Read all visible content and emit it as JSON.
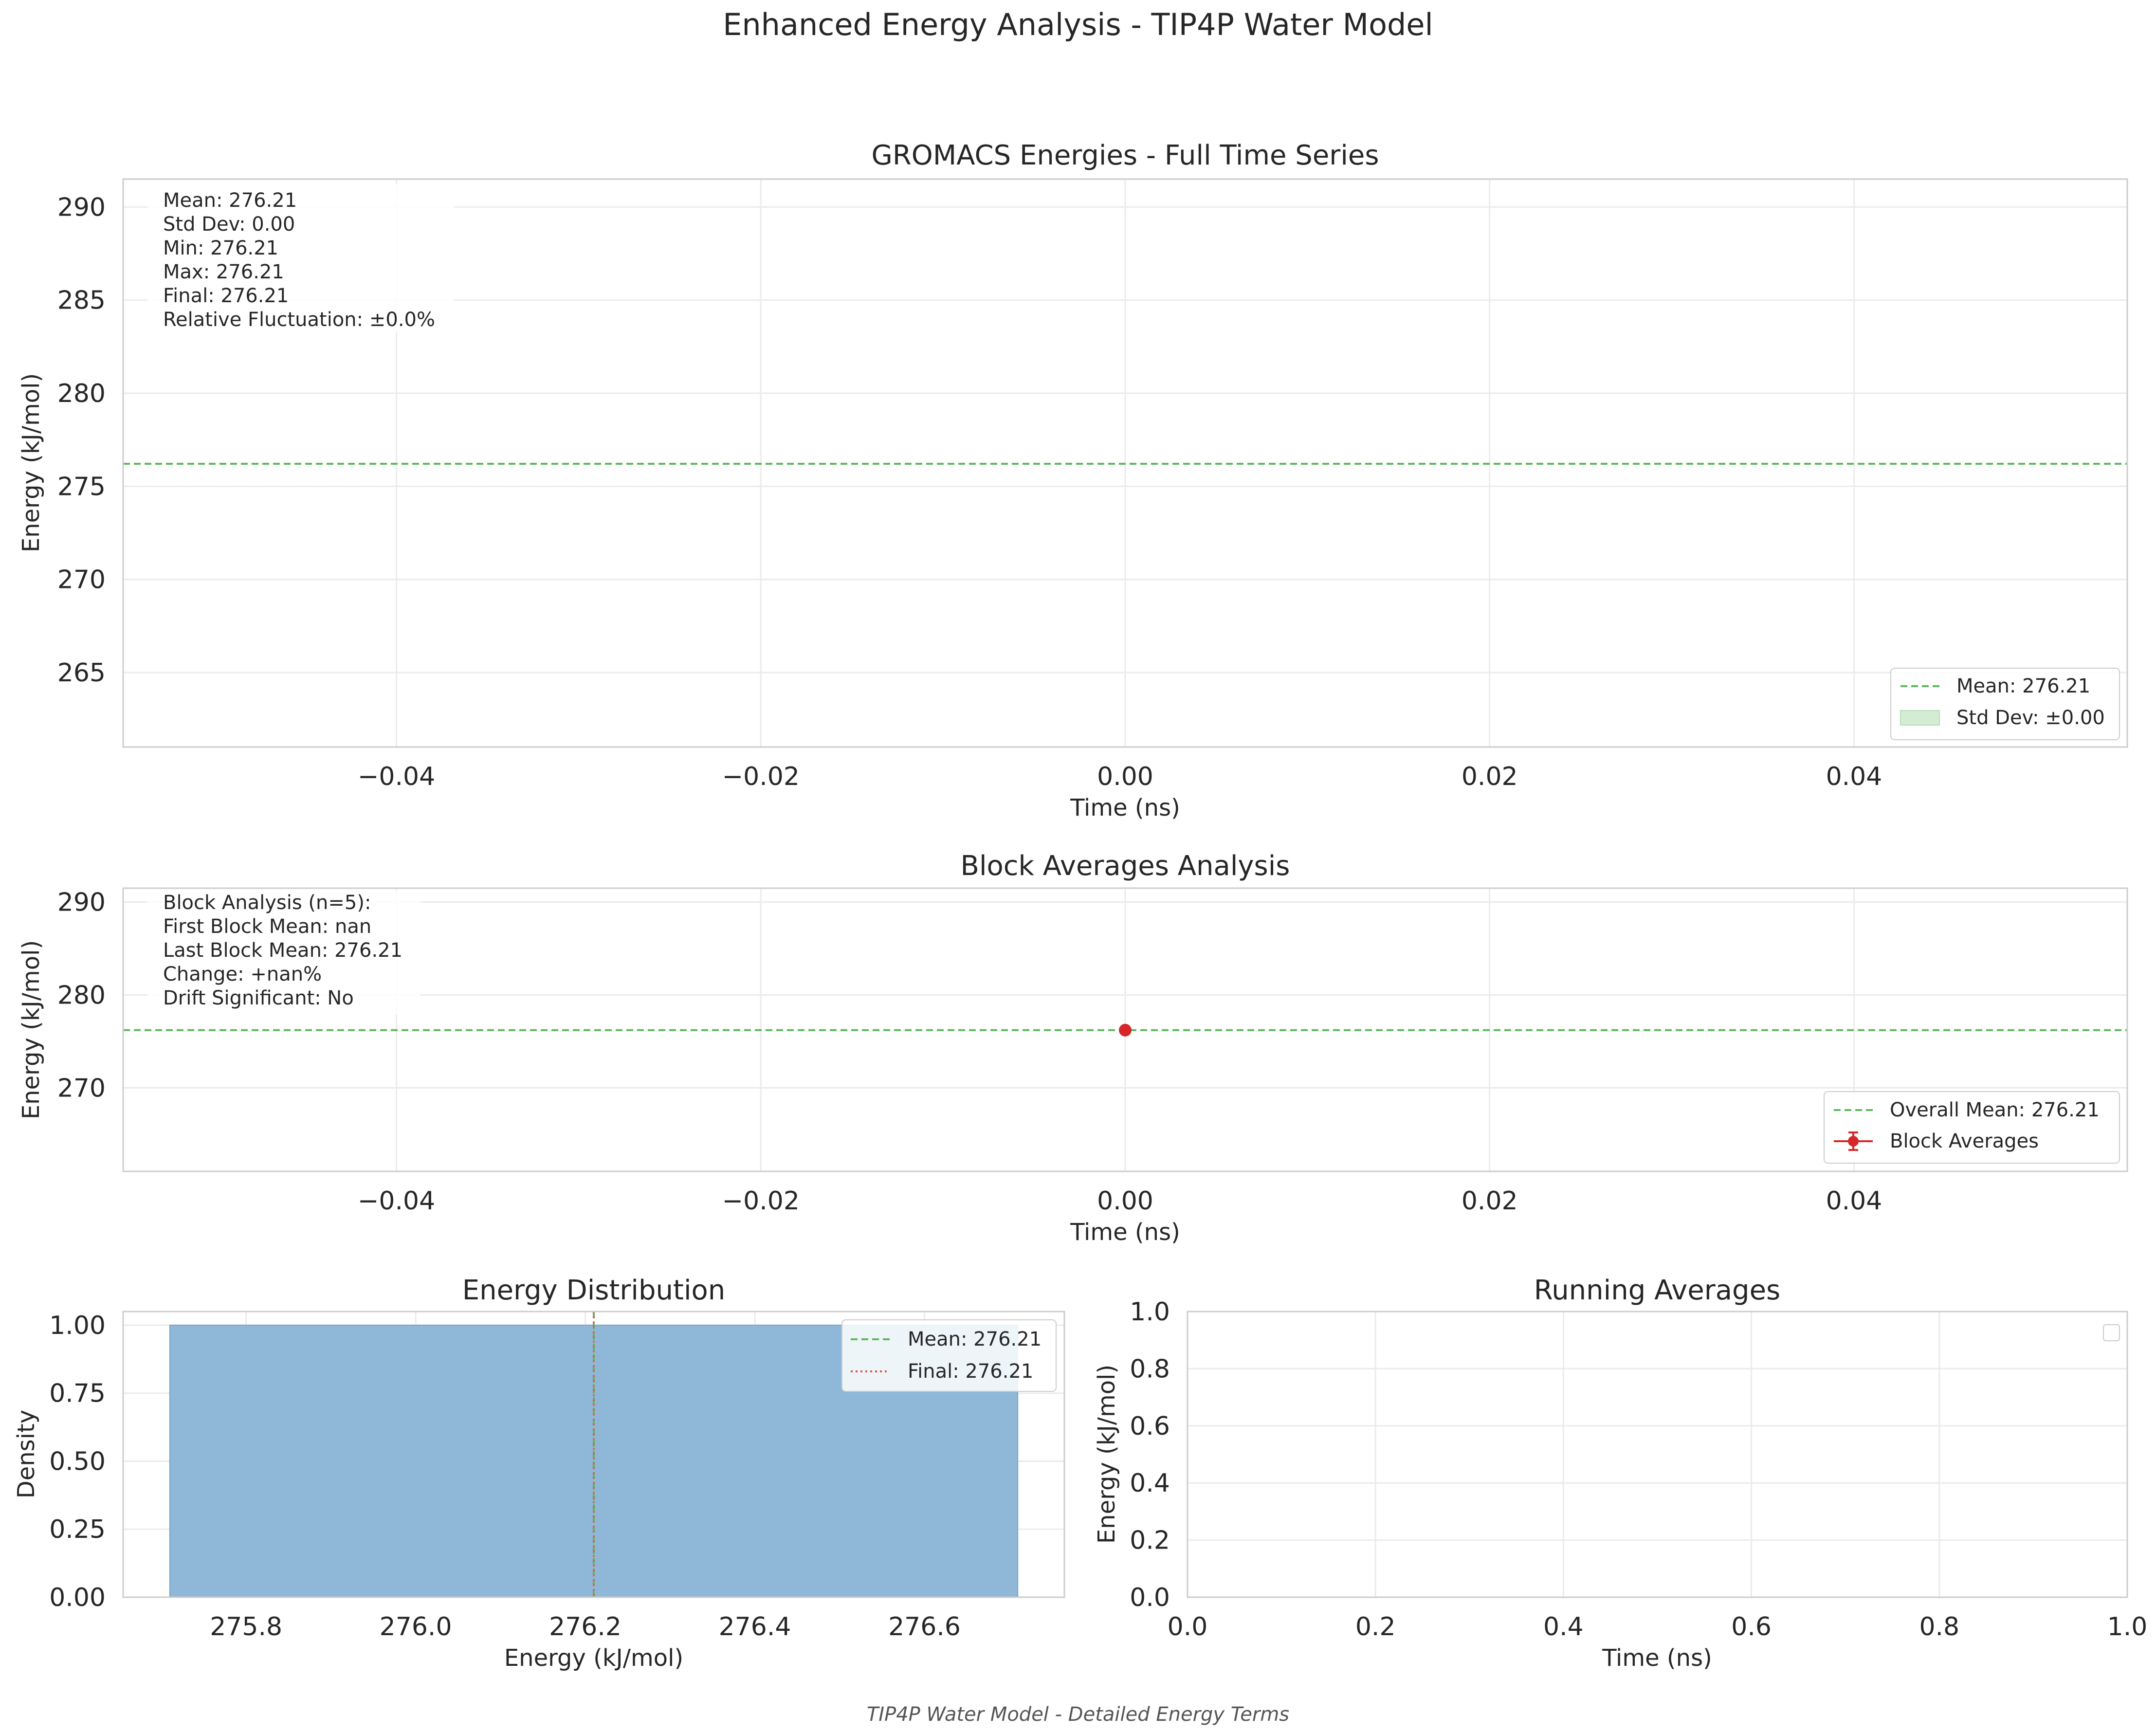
{
  "figure": {
    "suptitle": "Enhanced Energy Analysis - TIP4P Water Model",
    "footer": "TIP4P Water Model - Detailed Energy Terms"
  },
  "colors": {
    "mean_line": "#5cb85c",
    "final_line": "#e8534a",
    "block_marker": "#d62728",
    "hist_fill": "#8fb8d8",
    "hist_edge": "#7aa7c9",
    "grid": "#ebebeb",
    "spine": "#cccccc",
    "text": "#262626",
    "std_fill": "#d3ecd3"
  },
  "chart_data": [
    {
      "id": "timeseries",
      "type": "line",
      "title": "GROMACS Energies - Full Time Series",
      "xlabel": "Time (ns)",
      "ylabel": "Energy (kJ/mol)",
      "xlim": [
        -0.055,
        0.055
      ],
      "ylim": [
        261.0,
        291.5
      ],
      "xticks": [
        -0.04,
        -0.02,
        0.0,
        0.02,
        0.04
      ],
      "xtick_labels": [
        "−0.04",
        "−0.02",
        "0.00",
        "0.02",
        "0.04"
      ],
      "yticks": [
        265,
        270,
        275,
        280,
        285,
        290
      ],
      "ytick_labels": [
        "265",
        "270",
        "275",
        "280",
        "285",
        "290"
      ],
      "grid": true,
      "mean": 276.21,
      "std": 0.0,
      "stats_text": [
        "Mean: 276.21",
        "Std Dev: 0.00",
        "Min: 276.21",
        "Max: 276.21",
        "Final: 276.21",
        "Relative Fluctuation: ±0.0%"
      ],
      "legend": {
        "position": "lower-right",
        "entries": [
          {
            "label": "Mean: 276.21",
            "style": "dashed-green"
          },
          {
            "label": "Std Dev: ±0.00",
            "style": "fill-green"
          }
        ]
      }
    },
    {
      "id": "blocks",
      "type": "scatter",
      "title": "Block Averages Analysis",
      "xlabel": "Time (ns)",
      "ylabel": "Energy (kJ/mol)",
      "xlim": [
        -0.055,
        0.055
      ],
      "ylim": [
        261.0,
        291.5
      ],
      "xticks": [
        -0.04,
        -0.02,
        0.0,
        0.02,
        0.04
      ],
      "xtick_labels": [
        "−0.04",
        "−0.02",
        "0.00",
        "0.02",
        "0.04"
      ],
      "yticks": [
        270,
        280,
        290
      ],
      "ytick_labels": [
        "270",
        "280",
        "290"
      ],
      "grid": true,
      "overall_mean": 276.21,
      "points": [
        {
          "x": 0.0,
          "y": 276.21
        }
      ],
      "stats_text": [
        "Block Analysis (n=5):",
        "First Block Mean: nan",
        "Last Block Mean: 276.21",
        "Change: +nan%",
        "Drift Significant: No"
      ],
      "legend": {
        "position": "lower-right",
        "entries": [
          {
            "label": "Overall Mean: 276.21",
            "style": "dashed-green"
          },
          {
            "label": "Block Averages",
            "style": "errorbar-red"
          }
        ]
      }
    },
    {
      "id": "histogram",
      "type": "bar",
      "title": "Energy Distribution",
      "xlabel": "Energy (kJ/mol)",
      "ylabel": "Density",
      "xlim": [
        275.655,
        276.765
      ],
      "ylim": [
        0.0,
        1.05
      ],
      "xticks": [
        275.8,
        276.0,
        276.2,
        276.4,
        276.6
      ],
      "xtick_labels": [
        "275.8",
        "276.0",
        "276.2",
        "276.4",
        "276.6"
      ],
      "yticks": [
        0.0,
        0.25,
        0.5,
        0.75,
        1.0
      ],
      "ytick_labels": [
        "0.00",
        "0.25",
        "0.50",
        "0.75",
        "1.00"
      ],
      "grid": true,
      "bins": [
        {
          "x0": 275.71,
          "x1": 276.71,
          "density": 1.0
        }
      ],
      "mean": 276.21,
      "final": 276.21,
      "legend": {
        "position": "top-right",
        "entries": [
          {
            "label": "Mean: 276.21",
            "style": "dashed-green"
          },
          {
            "label": "Final: 276.21",
            "style": "dotted-red"
          }
        ]
      }
    },
    {
      "id": "running",
      "type": "line",
      "title": "Running Averages",
      "xlabel": "Time (ns)",
      "ylabel": "Energy (kJ/mol)",
      "xlim": [
        0.0,
        1.0
      ],
      "ylim": [
        0.0,
        1.0
      ],
      "xticks": [
        0.0,
        0.2,
        0.4,
        0.6,
        0.8,
        1.0
      ],
      "xtick_labels": [
        "0.0",
        "0.2",
        "0.4",
        "0.6",
        "0.8",
        "1.0"
      ],
      "yticks": [
        0.0,
        0.2,
        0.4,
        0.6,
        0.8,
        1.0
      ],
      "ytick_labels": [
        "0.0",
        "0.2",
        "0.4",
        "0.6",
        "0.8",
        "1.0"
      ],
      "grid": true,
      "series": [],
      "legend": {
        "position": "top-right",
        "entries": []
      }
    }
  ]
}
